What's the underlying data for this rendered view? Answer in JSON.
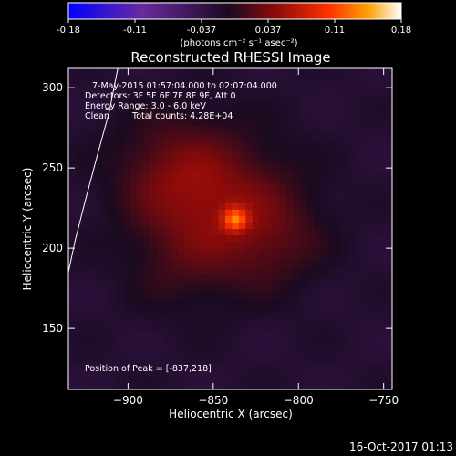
{
  "chart_data": {
    "type": "heatmap",
    "title": "Reconstructed RHESSI Image",
    "colorbar": {
      "ticks": [
        "-0.18",
        "-0.11",
        "-0.037",
        "0.037",
        "0.11",
        "0.18"
      ],
      "range": [
        -0.18,
        0.18
      ],
      "unit_label": "(photons cm⁻² s⁻¹ asec⁻²)",
      "colors": [
        "#0000ff",
        "#6a2aa0",
        "#1a0a20",
        "#8a0a0a",
        "#ff3000",
        "#ffa000",
        "#ffffff"
      ]
    },
    "xlabel": "Heliocentric X (arcsec)",
    "ylabel": "Heliocentric Y (arcsec)",
    "xlim": [
      -935,
      -745
    ],
    "ylim": [
      112,
      312
    ],
    "xticks": [
      -900,
      -850,
      -800,
      -750
    ],
    "yticks": [
      150,
      200,
      250,
      300
    ],
    "annotations": [
      "7-May-2015 01:57:04.000 to 02:07:04.000",
      "Detectors: 3F 5F 6F 7F 8F 9F, Att 0",
      "Energy Range: 3.0 - 6.0 keV",
      "Clean",
      "Total counts: 4.28E+04",
      "Position of Peak = [-837,218]"
    ],
    "peak": {
      "x": -837,
      "y": 218
    },
    "limb_points": [
      [
        -935,
        185
      ],
      [
        -931,
        205
      ],
      [
        -925,
        230
      ],
      [
        -918,
        258
      ],
      [
        -911,
        285
      ],
      [
        -906,
        312
      ]
    ],
    "emission_sources": [
      {
        "x": -837,
        "y": 218,
        "sigma": 5,
        "amp": 0.09
      },
      {
        "x": -845,
        "y": 228,
        "sigma": 30,
        "amp": 0.05
      },
      {
        "x": -875,
        "y": 248,
        "sigma": 24,
        "amp": 0.035
      },
      {
        "x": -815,
        "y": 205,
        "sigma": 22,
        "amp": 0.025
      },
      {
        "x": -870,
        "y": 190,
        "sigma": 22,
        "amp": 0.018
      }
    ],
    "background_value": -0.02
  },
  "footer": {
    "timestamp": "16-Oct-2017 01:13"
  }
}
